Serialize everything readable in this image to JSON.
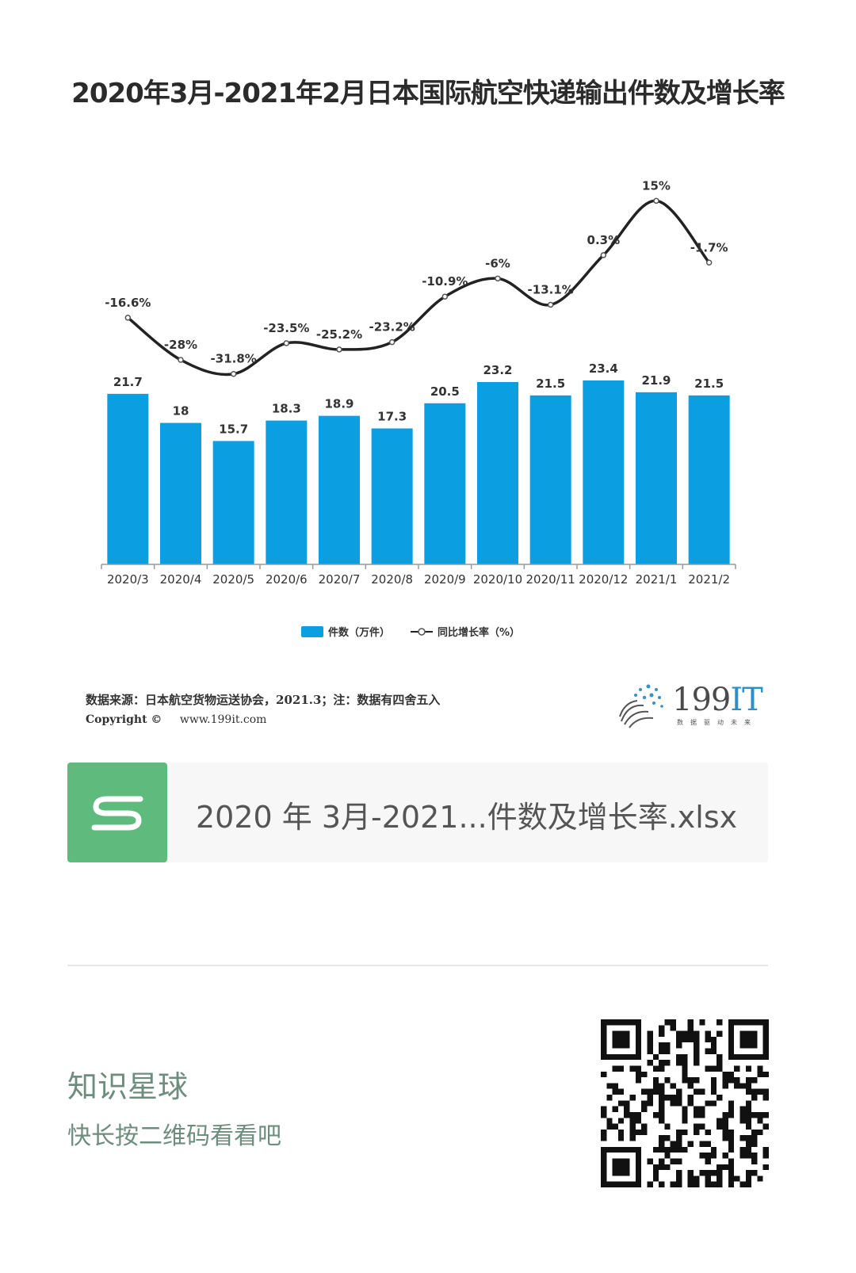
{
  "chart_data": {
    "type": "bar",
    "title": "2020年3月-2021年2月日本国际航空快递输出件数及增长率",
    "categories": [
      "2020/3",
      "2020/4",
      "2020/5",
      "2020/6",
      "2020/7",
      "2020/8",
      "2020/9",
      "2020/10",
      "2020/11",
      "2020/12",
      "2021/1",
      "2021/2"
    ],
    "series": [
      {
        "name": "件数（万件）",
        "kind": "bar",
        "color": "#0b9fe2",
        "values": [
          21.7,
          18,
          15.7,
          18.3,
          18.9,
          17.3,
          20.5,
          23.2,
          21.5,
          23.4,
          21.9,
          21.5
        ],
        "labels": [
          "21.7",
          "18",
          "15.7",
          "18.3",
          "18.9",
          "17.3",
          "20.5",
          "23.2",
          "21.5",
          "23.4",
          "21.9",
          "21.5"
        ]
      },
      {
        "name": "同比增长率（%）",
        "kind": "line",
        "color": "#222222",
        "values": [
          -16.6,
          -28,
          -31.8,
          -23.5,
          -25.2,
          -23.2,
          -10.9,
          -6,
          -13.1,
          0.3,
          15,
          -1.7
        ],
        "labels": [
          "-16.6%",
          "-28%",
          "-31.8%",
          "-23.5%",
          "-25.2%",
          "-23.2%",
          "-10.9%",
          "-6%",
          "-13.1%",
          "0.3%",
          "15%",
          "-1.7%"
        ]
      }
    ],
    "ylim": [
      0,
      25
    ],
    "y2lim": [
      -40,
      20
    ],
    "grid": false,
    "legend": "bottom-center"
  },
  "source": {
    "text": "数据来源：日本航空货物运送协会，2021.3；注：数据有四舍五入",
    "copyright_label": "Copyright ©",
    "website": "www.199it.com"
  },
  "logo": {
    "main": "199",
    "accent": "IT",
    "tagline": "数据驱动未来"
  },
  "file": {
    "icon_letter": "S",
    "name": "2020 年 3月-2021...件数及增长率.xlsx"
  },
  "footer": {
    "title": "知识星球",
    "subtitle": "快长按二维码看看吧"
  },
  "colors": {
    "bar": "#0b9fe2",
    "file_icon": "#5fbb7d",
    "footer_text": "#6d8d7f"
  }
}
